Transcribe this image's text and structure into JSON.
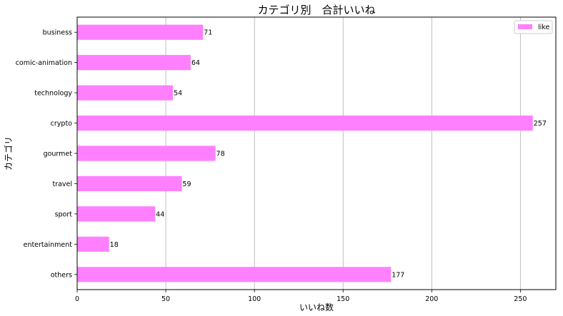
{
  "chart_data": {
    "type": "bar",
    "orientation": "horizontal",
    "title": "カテゴリ別　合計いいね",
    "xlabel": "いいね数",
    "ylabel": "カテゴリ",
    "categories": [
      "business",
      "comic-animation",
      "technology",
      "crypto",
      "gourmet",
      "travel",
      "sport",
      "entertainment",
      "others"
    ],
    "series": [
      {
        "name": "like",
        "values": [
          71,
          64,
          54,
          257,
          78,
          59,
          44,
          18,
          177
        ],
        "color": "#ff80ff"
      }
    ],
    "xlim": [
      0,
      270
    ],
    "xticks": [
      0,
      50,
      100,
      150,
      200,
      250
    ],
    "grid": "vertical",
    "legend": "top-right",
    "data_labels": true
  }
}
